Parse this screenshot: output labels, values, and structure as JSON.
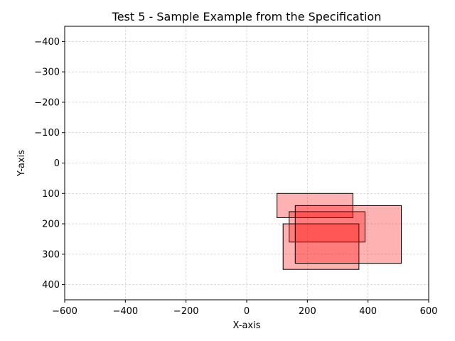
{
  "chart_data": {
    "type": "rectangle-overlay",
    "title": "Test 5 - Sample Example from the Specification",
    "xlabel": "X-axis",
    "ylabel": "Y-axis",
    "xlim": [
      -600,
      600
    ],
    "ylim": [
      450,
      -450
    ],
    "y_inverted": true,
    "grid": true,
    "x_ticks": [
      -600,
      -400,
      -200,
      0,
      200,
      400,
      600
    ],
    "x_tick_labels": [
      "−600",
      "−400",
      "−200",
      "0",
      "200",
      "400",
      "600"
    ],
    "y_ticks": [
      -400,
      -300,
      -200,
      -100,
      0,
      100,
      200,
      300,
      400
    ],
    "y_tick_labels": [
      "−400",
      "−300",
      "−200",
      "−100",
      "0",
      "100",
      "200",
      "300",
      "400"
    ],
    "rectangles": [
      {
        "x": 100,
        "y": 100,
        "width": 250,
        "height": 80
      },
      {
        "x": 140,
        "y": 160,
        "width": 250,
        "height": 100
      },
      {
        "x": 120,
        "y": 200,
        "width": 250,
        "height": 150
      },
      {
        "x": 160,
        "y": 140,
        "width": 350,
        "height": 190
      }
    ],
    "fill_color": "#ff0000",
    "fill_opacity": 0.3,
    "edge_color": "#000000"
  }
}
